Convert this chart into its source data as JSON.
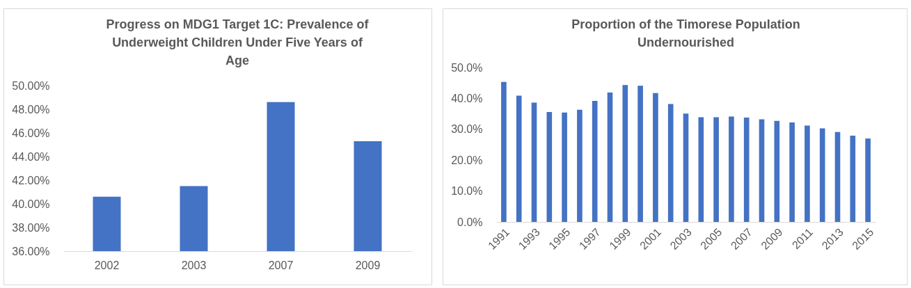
{
  "chart_data": [
    {
      "type": "bar",
      "title": "Progress on MDG1 Target 1C: Prevalence of Underweight Children Under Five Years of Age",
      "categories": [
        "2002",
        "2003",
        "2007",
        "2009"
      ],
      "values": [
        40.6,
        41.5,
        48.6,
        45.3
      ],
      "color": "#4472c4",
      "ylim": [
        36,
        50
      ],
      "yticks": [
        {
          "value": 36,
          "label": "36.00%"
        },
        {
          "value": 38,
          "label": "38.00%"
        },
        {
          "value": 40,
          "label": "40.00%"
        },
        {
          "value": 42,
          "label": "42.00%"
        },
        {
          "value": 44,
          "label": "44.00%"
        },
        {
          "value": 46,
          "label": "46.00%"
        },
        {
          "value": 48,
          "label": "48.00%"
        },
        {
          "value": 50,
          "label": "50.00%"
        }
      ]
    },
    {
      "type": "bar",
      "title": "Proportion of the Timorese Population Undernourished",
      "categories": [
        "1991",
        null,
        "1993",
        null,
        "1995",
        null,
        "1997",
        null,
        "1999",
        null,
        "2001",
        null,
        "2003",
        null,
        "2005",
        null,
        "2007",
        null,
        "2009",
        null,
        "2011",
        null,
        "2013",
        null,
        "2015"
      ],
      "values": [
        45.3,
        40.9,
        38.6,
        35.6,
        35.4,
        36.3,
        39.2,
        41.9,
        44.3,
        44.1,
        41.7,
        38.2,
        35.1,
        33.9,
        33.9,
        34.1,
        33.8,
        33.2,
        32.7,
        32.2,
        31.2,
        30.3,
        29.1,
        27.9,
        27.0
      ],
      "color": "#4472c4",
      "ylim": [
        0,
        50
      ],
      "yticks": [
        {
          "value": 0,
          "label": "0.0%"
        },
        {
          "value": 10,
          "label": "10.0%"
        },
        {
          "value": 20,
          "label": "20.0%"
        },
        {
          "value": 30,
          "label": "30.0%"
        },
        {
          "value": 40,
          "label": "40.0%"
        },
        {
          "value": 50,
          "label": "50.0%"
        }
      ]
    }
  ]
}
